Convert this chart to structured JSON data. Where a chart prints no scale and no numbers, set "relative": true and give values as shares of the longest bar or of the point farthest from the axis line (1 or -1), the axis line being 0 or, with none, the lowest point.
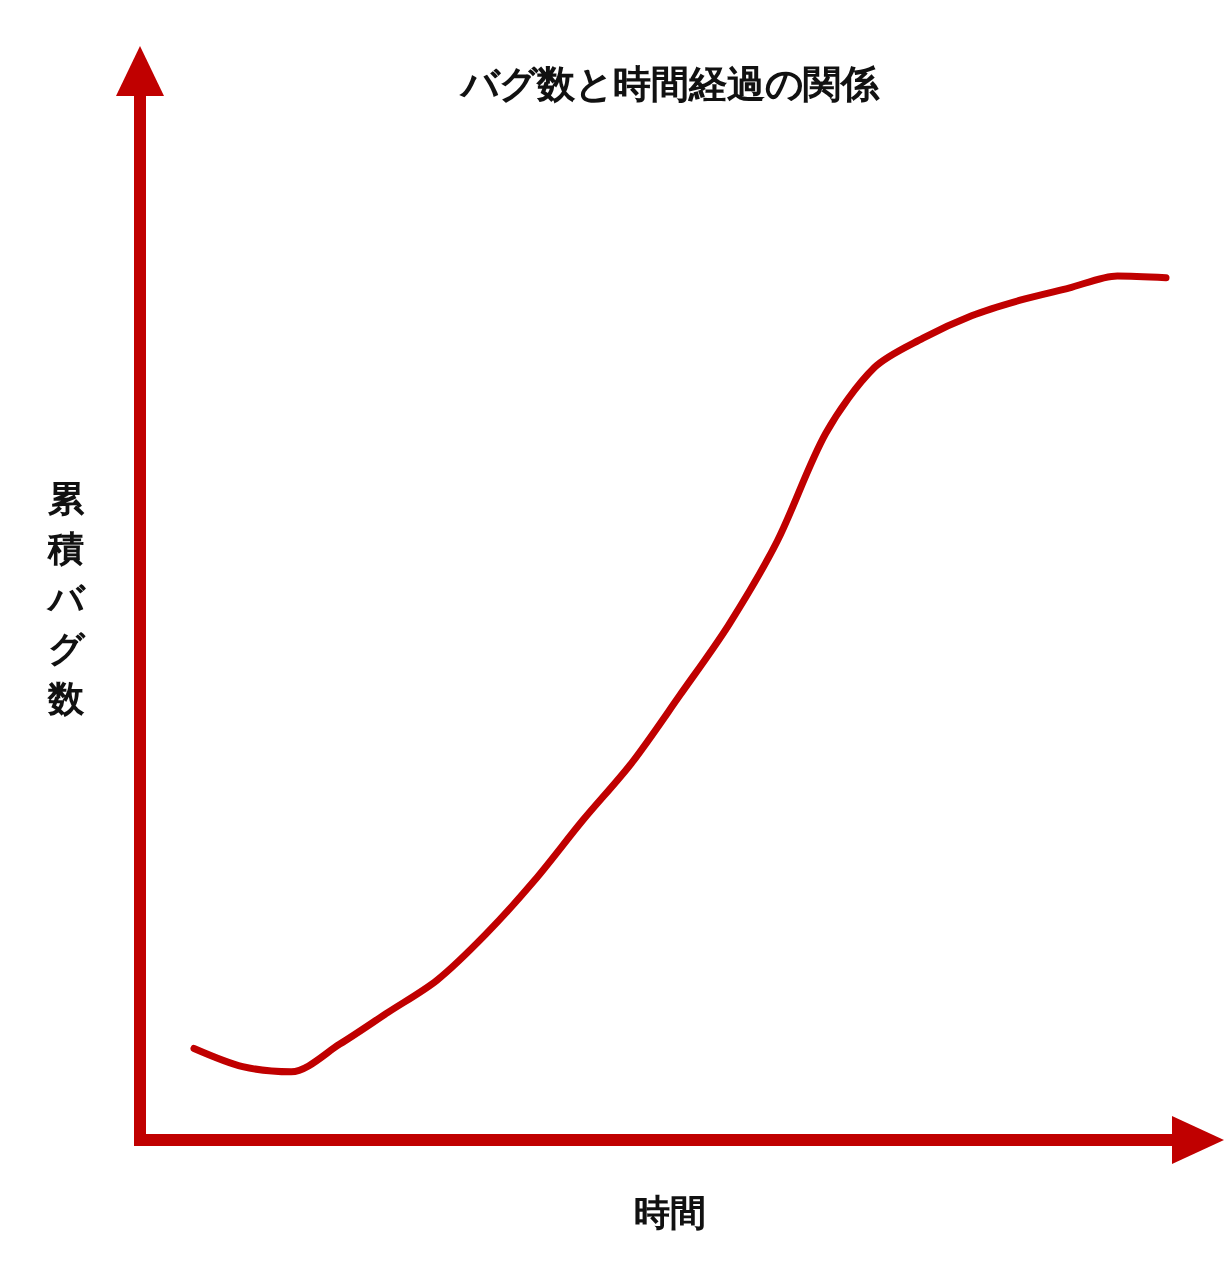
{
  "chart_data": {
    "type": "line",
    "title": "バグ数と時間経過の関係",
    "xlabel": "時間",
    "ylabel": "累積バグ数",
    "relative": true,
    "color": "#c00000",
    "marker": "none",
    "line_style": "solid",
    "categories": [
      null,
      null,
      null,
      null,
      null,
      null,
      null,
      null,
      null,
      null,
      null,
      null,
      null,
      null,
      null,
      null,
      null,
      null,
      null,
      null,
      null
    ],
    "values": [
      0.106,
      0.085,
      0.079,
      0.111,
      0.148,
      0.185,
      0.238,
      0.3,
      0.37,
      0.436,
      0.515,
      0.596,
      0.693,
      0.818,
      0.894,
      0.928,
      0.954,
      0.972,
      0.986,
      1,
      0.998
    ]
  }
}
